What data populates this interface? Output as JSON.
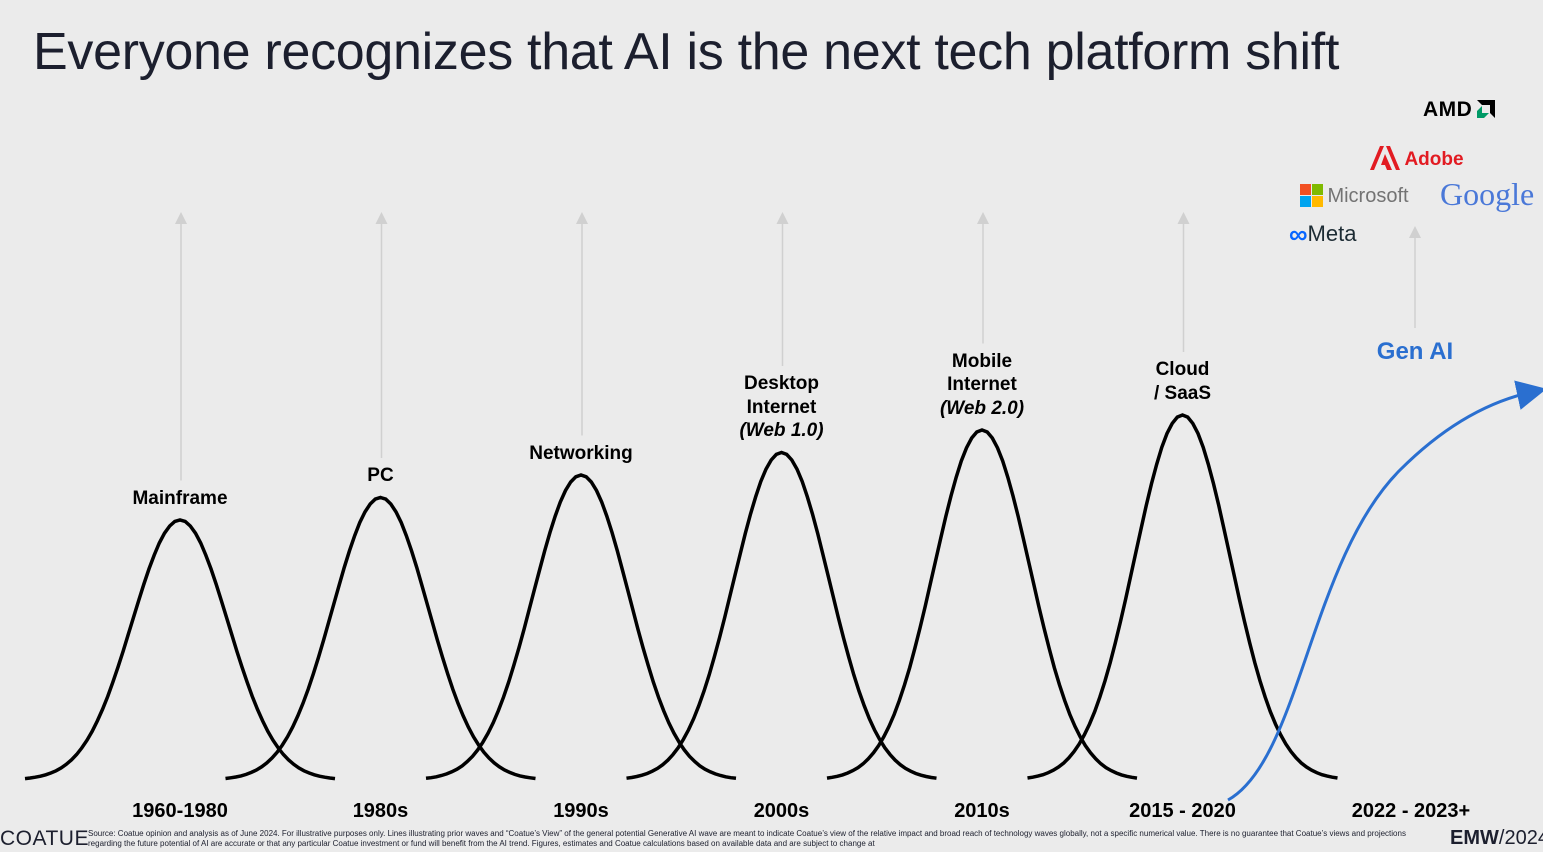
{
  "title": "Everyone recognizes that AI is the next tech platform shift",
  "waves": [
    {
      "label": [
        "Mainframe"
      ],
      "italic": "",
      "period": "1960-1980",
      "peak": 0.72
    },
    {
      "label": [
        "PC"
      ],
      "italic": "",
      "period": "1980s",
      "peak": 0.78
    },
    {
      "label": [
        "Networking"
      ],
      "italic": "",
      "period": "1990s",
      "peak": 0.84
    },
    {
      "label": [
        "Desktop",
        "Internet"
      ],
      "italic": "(Web 1.0)",
      "period": "2000s",
      "peak": 0.9
    },
    {
      "label": [
        "Mobile",
        "Internet"
      ],
      "italic": "(Web 2.0)",
      "period": "2010s",
      "peak": 0.96
    },
    {
      "label": [
        "Cloud",
        "/ SaaS"
      ],
      "italic": "",
      "period": "2015 - 2020",
      "peak": 1.0
    }
  ],
  "gen_ai": {
    "label": "Gen AI",
    "period": "2022 - 2023+",
    "color": "#2a6fd0"
  },
  "logos": {
    "amd": "AMD",
    "adobe": "Adobe",
    "microsoft": "Microsoft",
    "google": "Google",
    "meta": "Meta"
  },
  "footer": {
    "brand": "COATUE",
    "source": "Source: Coatue opinion and analysis as of June 2024. For illustrative purposes only. Lines illustrating prior waves and “Coatue’s View” of the general potential Generative AI wave are meant to indicate Coatue’s view of the relative impact and broad reach of technology waves globally, not a specific numerical value. There is no guarantee that Coatue’s views and projections regarding the future potential of AI are accurate or that any particular Coatue investment or fund will benefit from the AI trend.  Figures, estimates and Coatue calculations based on available data and are subject to change at",
    "emw_bold": "EMW",
    "emw_rest": "/2024"
  }
}
